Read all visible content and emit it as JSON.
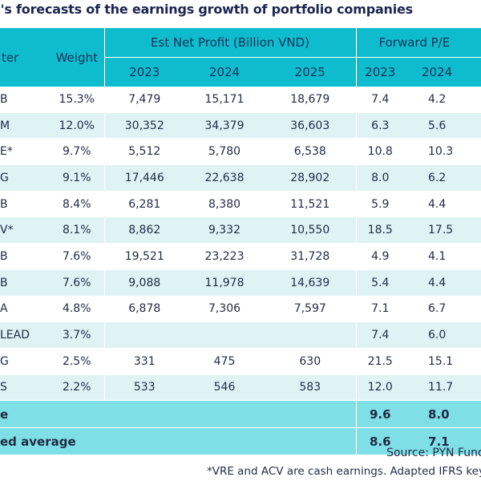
{
  "title": "e's forecasts of the earnings growth of portfolio companies",
  "header": {
    "ticker": "ter",
    "weight": "Weight",
    "net_profit": "Est Net Profit (Billion VND)",
    "forward_pe": "Forward P/E",
    "np_years": [
      "2023",
      "2024",
      "2025"
    ],
    "pe_years": [
      "2023",
      "2024"
    ]
  },
  "rows": [
    {
      "ticker": "B",
      "weight": "15.3%",
      "np2023": "7,479",
      "np2024": "15,171",
      "np2025": "18,679",
      "pe2023": "7.4",
      "pe2024": "4.2"
    },
    {
      "ticker": "M",
      "weight": "12.0%",
      "np2023": "30,352",
      "np2024": "34,379",
      "np2025": "36,603",
      "pe2023": "6.3",
      "pe2024": "5.6"
    },
    {
      "ticker": "E*",
      "weight": "9.7%",
      "np2023": "5,512",
      "np2024": "5,780",
      "np2025": "6,538",
      "pe2023": "10.8",
      "pe2024": "10.3"
    },
    {
      "ticker": "G",
      "weight": "9.1%",
      "np2023": "17,446",
      "np2024": "22,638",
      "np2025": "28,902",
      "pe2023": "8.0",
      "pe2024": "6.2"
    },
    {
      "ticker": "B",
      "weight": "8.4%",
      "np2023": "6,281",
      "np2024": "8,380",
      "np2025": "11,521",
      "pe2023": "5.9",
      "pe2024": "4.4"
    },
    {
      "ticker": "V*",
      "weight": "8.1%",
      "np2023": "8,862",
      "np2024": "9,332",
      "np2025": "10,550",
      "pe2023": "18.5",
      "pe2024": "17.5"
    },
    {
      "ticker": "B",
      "weight": "7.6%",
      "np2023": "19,521",
      "np2024": "23,223",
      "np2025": "31,728",
      "pe2023": "4.9",
      "pe2024": "4.1"
    },
    {
      "ticker": "B",
      "weight": "7.6%",
      "np2023": "9,088",
      "np2024": "11,978",
      "np2025": "14,639",
      "pe2023": "5.4",
      "pe2024": "4.4"
    },
    {
      "ticker": "A",
      "weight": "4.8%",
      "np2023": "6,878",
      "np2024": "7,306",
      "np2025": "7,597",
      "pe2023": "7.1",
      "pe2024": "6.7"
    },
    {
      "ticker": "LEAD",
      "weight": "3.7%",
      "np2023": "",
      "np2024": "",
      "np2025": "",
      "pe2023": "7.4",
      "pe2024": "6.0"
    },
    {
      "ticker": "G",
      "weight": "2.5%",
      "np2023": "331",
      "np2024": "475",
      "np2025": "630",
      "pe2023": "21.5",
      "pe2024": "15.1"
    },
    {
      "ticker": "S",
      "weight": "2.2%",
      "np2023": "533",
      "np2024": "546",
      "np2025": "583",
      "pe2023": "12.0",
      "pe2024": "11.7"
    }
  ],
  "summary": [
    {
      "label": "e",
      "pe2023": "9.6",
      "pe2024": "8.0"
    },
    {
      "label": "ed average",
      "pe2023": "8.6",
      "pe2024": "7.1"
    }
  ],
  "footer": {
    "source": "Source: PYN Fund Ma",
    "note": "*VRE and ACV are cash earnings. Adapted IFRS key g"
  },
  "colors": {
    "header_bg": "#0fbccd",
    "row_tint": "#dff3f5",
    "summary_bg": "#7fdfe6",
    "title_text": "#1b2550"
  }
}
